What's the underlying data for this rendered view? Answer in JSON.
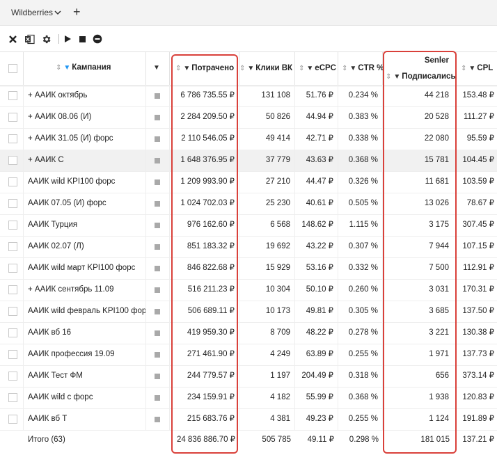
{
  "workspace": {
    "name": "Wildberries",
    "add_label": "+"
  },
  "toolbar": {
    "icons": [
      "close-icon",
      "excel-icon",
      "gear-icon",
      "play-icon",
      "stop-icon",
      "minus-circle-icon"
    ]
  },
  "header": {
    "campaign": "Кампания",
    "spent": "Потрачено",
    "clicks": "Клики ВК",
    "ecpc": "eCPC",
    "ctr": "CTR %",
    "senler_group": "Senler",
    "subscribed": "Подписались",
    "cpl": "CPL"
  },
  "rows": [
    {
      "name": "+ ААИК октябрь",
      "spent": "6 786 735.55 ₽",
      "clicks": "131 108",
      "ecpc": "51.76 ₽",
      "ctr": "0.234 %",
      "subscribed": "44 218",
      "cpl": "153.48 ₽"
    },
    {
      "name": "+ ААИК 08.06 (И)",
      "spent": "2 284 209.50 ₽",
      "clicks": "50 826",
      "ecpc": "44.94 ₽",
      "ctr": "0.383 %",
      "subscribed": "20 528",
      "cpl": "111.27 ₽"
    },
    {
      "name": "+ ААИК 31.05 (И) форс",
      "spent": "2 110 546.05 ₽",
      "clicks": "49 414",
      "ecpc": "42.71 ₽",
      "ctr": "0.338 %",
      "subscribed": "22 080",
      "cpl": "95.59 ₽"
    },
    {
      "name": "+ ААИК С",
      "spent": "1 648 376.95 ₽",
      "clicks": "37 779",
      "ecpc": "43.63 ₽",
      "ctr": "0.368 %",
      "subscribed": "15 781",
      "cpl": "104.45 ₽"
    },
    {
      "name": "ААИК wild KPI100 форс",
      "spent": "1 209 993.90 ₽",
      "clicks": "27 210",
      "ecpc": "44.47 ₽",
      "ctr": "0.326 %",
      "subscribed": "11 681",
      "cpl": "103.59 ₽"
    },
    {
      "name": "ААИК 07.05 (И) форс",
      "spent": "1 024 702.03 ₽",
      "clicks": "25 230",
      "ecpc": "40.61 ₽",
      "ctr": "0.505 %",
      "subscribed": "13 026",
      "cpl": "78.67 ₽"
    },
    {
      "name": "ААИК Турция",
      "spent": "976 162.60 ₽",
      "clicks": "6 568",
      "ecpc": "148.62 ₽",
      "ctr": "1.115 %",
      "subscribed": "3 175",
      "cpl": "307.45 ₽"
    },
    {
      "name": "ААИК 02.07 (Л)",
      "spent": "851 183.32 ₽",
      "clicks": "19 692",
      "ecpc": "43.22 ₽",
      "ctr": "0.307 %",
      "subscribed": "7 944",
      "cpl": "107.15 ₽"
    },
    {
      "name": "ААИК wild март KPI100 форс",
      "spent": "846 822.68 ₽",
      "clicks": "15 929",
      "ecpc": "53.16 ₽",
      "ctr": "0.332 %",
      "subscribed": "7 500",
      "cpl": "112.91 ₽"
    },
    {
      "name": "+ ААИК сентябрь 11.09",
      "spent": "516 211.23 ₽",
      "clicks": "10 304",
      "ecpc": "50.10 ₽",
      "ctr": "0.260 %",
      "subscribed": "3 031",
      "cpl": "170.31 ₽"
    },
    {
      "name": "ААИК wild февраль KPI100 фор",
      "spent": "506 689.11 ₽",
      "clicks": "10 173",
      "ecpc": "49.81 ₽",
      "ctr": "0.305 %",
      "subscribed": "3 685",
      "cpl": "137.50 ₽"
    },
    {
      "name": "ААИК вб 16",
      "spent": "419 959.30 ₽",
      "clicks": "8 709",
      "ecpc": "48.22 ₽",
      "ctr": "0.278 %",
      "subscribed": "3 221",
      "cpl": "130.38 ₽"
    },
    {
      "name": "ААИК профессия 19.09",
      "spent": "271 461.90 ₽",
      "clicks": "4 249",
      "ecpc": "63.89 ₽",
      "ctr": "0.255 %",
      "subscribed": "1 971",
      "cpl": "137.73 ₽"
    },
    {
      "name": "ААИК Тест ФМ",
      "spent": "244 779.57 ₽",
      "clicks": "1 197",
      "ecpc": "204.49 ₽",
      "ctr": "0.318 %",
      "subscribed": "656",
      "cpl": "373.14 ₽"
    },
    {
      "name": "ААИК wild с форс",
      "spent": "234 159.91 ₽",
      "clicks": "4 182",
      "ecpc": "55.99 ₽",
      "ctr": "0.368 %",
      "subscribed": "1 938",
      "cpl": "120.83 ₽"
    },
    {
      "name": "ААИК вб Т",
      "spent": "215 683.76 ₽",
      "clicks": "4 381",
      "ecpc": "49.23 ₽",
      "ctr": "0.255 %",
      "subscribed": "1 124",
      "cpl": "191.89 ₽"
    }
  ],
  "totals": {
    "name": "Итого (63)",
    "spent": "24 836 886.70 ₽",
    "clicks": "505 785",
    "ecpc": "49.11 ₽",
    "ctr": "0.298 %",
    "subscribed": "181 015",
    "cpl": "137.21 ₽"
  },
  "highlight_color": "#d9403a",
  "filter_active_color": "#2196f3"
}
